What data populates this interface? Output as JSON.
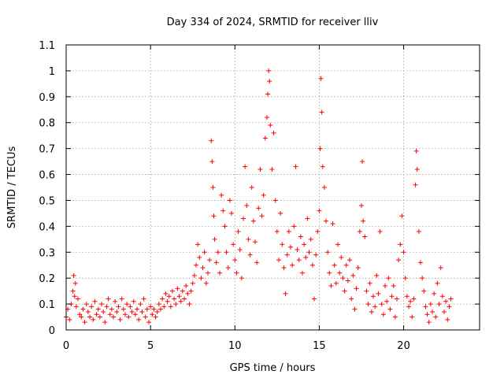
{
  "chart_data": {
    "type": "scatter",
    "title": "Day 334 of 2024, SRMTID for receiver lliv",
    "xlabel": "GPS time / hours",
    "ylabel": "SRMTID / TECUs",
    "xlim": [
      0,
      24.5
    ],
    "ylim": [
      0,
      1.1
    ],
    "xticks": [
      0,
      5,
      10,
      15,
      20
    ],
    "xtick_labels": [
      "0",
      "5",
      "10",
      "15",
      "20"
    ],
    "yticks": [
      0,
      0.1,
      0.2,
      0.3,
      0.4,
      0.5,
      0.6,
      0.7,
      0.8,
      0.9,
      1.0,
      1.1
    ],
    "ytick_labels": [
      "0",
      "0.1",
      "0.2",
      "0.3",
      "0.4",
      "0.5",
      "0.6",
      "0.7",
      "0.8",
      "0.9",
      "1",
      "1.1"
    ],
    "grid": true,
    "marker": "+",
    "series": [
      {
        "name": "SRMTID",
        "color": "#ff0000",
        "points": [
          [
            0.0,
            0.05
          ],
          [
            0.1,
            0.08
          ],
          [
            0.2,
            0.04
          ],
          [
            0.3,
            0.1
          ],
          [
            0.4,
            0.15
          ],
          [
            0.45,
            0.21
          ],
          [
            0.5,
            0.13
          ],
          [
            0.55,
            0.18
          ],
          [
            0.6,
            0.09
          ],
          [
            0.7,
            0.12
          ],
          [
            0.8,
            0.06
          ],
          [
            0.9,
            0.05
          ],
          [
            1.0,
            0.08
          ],
          [
            1.1,
            0.03
          ],
          [
            1.2,
            0.1
          ],
          [
            1.3,
            0.07
          ],
          [
            1.4,
            0.05
          ],
          [
            1.5,
            0.09
          ],
          [
            1.6,
            0.04
          ],
          [
            1.7,
            0.11
          ],
          [
            1.8,
            0.06
          ],
          [
            1.9,
            0.08
          ],
          [
            2.0,
            0.05
          ],
          [
            2.1,
            0.1
          ],
          [
            2.2,
            0.07
          ],
          [
            2.3,
            0.03
          ],
          [
            2.4,
            0.09
          ],
          [
            2.5,
            0.12
          ],
          [
            2.6,
            0.06
          ],
          [
            2.7,
            0.08
          ],
          [
            2.8,
            0.05
          ],
          [
            2.9,
            0.11
          ],
          [
            3.0,
            0.07
          ],
          [
            3.1,
            0.09
          ],
          [
            3.2,
            0.04
          ],
          [
            3.3,
            0.12
          ],
          [
            3.4,
            0.08
          ],
          [
            3.5,
            0.06
          ],
          [
            3.6,
            0.1
          ],
          [
            3.7,
            0.05
          ],
          [
            3.8,
            0.09
          ],
          [
            3.9,
            0.07
          ],
          [
            4.0,
            0.11
          ],
          [
            4.1,
            0.06
          ],
          [
            4.2,
            0.08
          ],
          [
            4.3,
            0.04
          ],
          [
            4.4,
            0.1
          ],
          [
            4.5,
            0.07
          ],
          [
            4.6,
            0.12
          ],
          [
            4.7,
            0.05
          ],
          [
            4.8,
            0.08
          ],
          [
            4.9,
            0.03
          ],
          [
            5.0,
            0.09
          ],
          [
            5.1,
            0.06
          ],
          [
            5.2,
            0.08
          ],
          [
            5.3,
            0.05
          ],
          [
            5.4,
            0.07
          ],
          [
            5.5,
            0.1
          ],
          [
            5.6,
            0.08
          ],
          [
            5.7,
            0.12
          ],
          [
            5.8,
            0.09
          ],
          [
            5.9,
            0.14
          ],
          [
            6.0,
            0.11
          ],
          [
            6.1,
            0.13
          ],
          [
            6.2,
            0.09
          ],
          [
            6.3,
            0.15
          ],
          [
            6.4,
            0.12
          ],
          [
            6.5,
            0.1
          ],
          [
            6.6,
            0.16
          ],
          [
            6.7,
            0.13
          ],
          [
            6.8,
            0.11
          ],
          [
            6.9,
            0.15
          ],
          [
            7.0,
            0.12
          ],
          [
            7.1,
            0.17
          ],
          [
            7.2,
            0.14
          ],
          [
            7.3,
            0.1
          ],
          [
            7.4,
            0.15
          ],
          [
            7.5,
            0.18
          ],
          [
            7.6,
            0.21
          ],
          [
            7.7,
            0.25
          ],
          [
            7.8,
            0.33
          ],
          [
            7.9,
            0.28
          ],
          [
            8.0,
            0.2
          ],
          [
            8.1,
            0.24
          ],
          [
            8.2,
            0.3
          ],
          [
            8.3,
            0.18
          ],
          [
            8.4,
            0.22
          ],
          [
            8.5,
            0.27
          ],
          [
            8.6,
            0.73
          ],
          [
            8.65,
            0.65
          ],
          [
            8.7,
            0.55
          ],
          [
            8.75,
            0.44
          ],
          [
            8.8,
            0.35
          ],
          [
            8.9,
            0.26
          ],
          [
            9.0,
            0.3
          ],
          [
            9.1,
            0.22
          ],
          [
            9.2,
            0.52
          ],
          [
            9.3,
            0.46
          ],
          [
            9.4,
            0.4
          ],
          [
            9.5,
            0.3
          ],
          [
            9.6,
            0.24
          ],
          [
            9.7,
            0.5
          ],
          [
            9.8,
            0.45
          ],
          [
            9.9,
            0.33
          ],
          [
            10.0,
            0.27
          ],
          [
            10.1,
            0.22
          ],
          [
            10.2,
            0.38
          ],
          [
            10.3,
            0.31
          ],
          [
            10.4,
            0.2
          ],
          [
            10.5,
            0.43
          ],
          [
            10.6,
            0.63
          ],
          [
            10.7,
            0.48
          ],
          [
            10.8,
            0.35
          ],
          [
            10.9,
            0.29
          ],
          [
            11.0,
            0.55
          ],
          [
            11.1,
            0.42
          ],
          [
            11.2,
            0.34
          ],
          [
            11.3,
            0.26
          ],
          [
            11.4,
            0.47
          ],
          [
            11.5,
            0.62
          ],
          [
            11.6,
            0.44
          ],
          [
            11.7,
            0.52
          ],
          [
            11.8,
            0.74
          ],
          [
            11.9,
            0.82
          ],
          [
            11.95,
            0.91
          ],
          [
            12.0,
            1.0
          ],
          [
            12.05,
            0.96
          ],
          [
            12.1,
            0.79
          ],
          [
            12.2,
            0.62
          ],
          [
            12.3,
            0.76
          ],
          [
            12.4,
            0.5
          ],
          [
            12.5,
            0.38
          ],
          [
            12.6,
            0.27
          ],
          [
            12.7,
            0.45
          ],
          [
            12.8,
            0.33
          ],
          [
            12.9,
            0.24
          ],
          [
            13.0,
            0.14
          ],
          [
            13.1,
            0.29
          ],
          [
            13.2,
            0.38
          ],
          [
            13.3,
            0.32
          ],
          [
            13.4,
            0.25
          ],
          [
            13.5,
            0.4
          ],
          [
            13.6,
            0.63
          ],
          [
            13.7,
            0.31
          ],
          [
            13.8,
            0.27
          ],
          [
            13.9,
            0.36
          ],
          [
            14.0,
            0.22
          ],
          [
            14.1,
            0.33
          ],
          [
            14.2,
            0.28
          ],
          [
            14.3,
            0.43
          ],
          [
            14.4,
            0.3
          ],
          [
            14.5,
            0.35
          ],
          [
            14.6,
            0.25
          ],
          [
            14.7,
            0.12
          ],
          [
            14.8,
            0.29
          ],
          [
            14.9,
            0.38
          ],
          [
            15.0,
            0.46
          ],
          [
            15.05,
            0.7
          ],
          [
            15.1,
            0.97
          ],
          [
            15.15,
            0.84
          ],
          [
            15.2,
            0.63
          ],
          [
            15.3,
            0.55
          ],
          [
            15.4,
            0.42
          ],
          [
            15.5,
            0.3
          ],
          [
            15.6,
            0.22
          ],
          [
            15.7,
            0.17
          ],
          [
            15.8,
            0.41
          ],
          [
            15.9,
            0.25
          ],
          [
            16.0,
            0.18
          ],
          [
            16.1,
            0.33
          ],
          [
            16.2,
            0.22
          ],
          [
            16.3,
            0.28
          ],
          [
            16.4,
            0.2
          ],
          [
            16.5,
            0.15
          ],
          [
            16.6,
            0.25
          ],
          [
            16.7,
            0.19
          ],
          [
            16.8,
            0.27
          ],
          [
            16.9,
            0.12
          ],
          [
            17.0,
            0.21
          ],
          [
            17.1,
            0.08
          ],
          [
            17.2,
            0.16
          ],
          [
            17.3,
            0.24
          ],
          [
            17.4,
            0.38
          ],
          [
            17.5,
            0.48
          ],
          [
            17.55,
            0.65
          ],
          [
            17.6,
            0.42
          ],
          [
            17.7,
            0.36
          ],
          [
            17.8,
            0.15
          ],
          [
            17.9,
            0.1
          ],
          [
            18.0,
            0.18
          ],
          [
            18.1,
            0.07
          ],
          [
            18.2,
            0.13
          ],
          [
            18.3,
            0.09
          ],
          [
            18.4,
            0.21
          ],
          [
            18.5,
            0.14
          ],
          [
            18.6,
            0.38
          ],
          [
            18.7,
            0.1
          ],
          [
            18.8,
            0.06
          ],
          [
            18.9,
            0.17
          ],
          [
            19.0,
            0.11
          ],
          [
            19.1,
            0.2
          ],
          [
            19.2,
            0.08
          ],
          [
            19.3,
            0.13
          ],
          [
            19.4,
            0.17
          ],
          [
            19.5,
            0.05
          ],
          [
            19.6,
            0.12
          ],
          [
            19.7,
            0.27
          ],
          [
            19.8,
            0.33
          ],
          [
            19.9,
            0.44
          ],
          [
            20.0,
            0.3
          ],
          [
            20.1,
            0.2
          ],
          [
            20.2,
            0.13
          ],
          [
            20.3,
            0.09
          ],
          [
            20.4,
            0.11
          ],
          [
            20.5,
            0.05
          ],
          [
            20.6,
            0.12
          ],
          [
            20.7,
            0.56
          ],
          [
            20.75,
            0.69
          ],
          [
            20.8,
            0.62
          ],
          [
            20.9,
            0.38
          ],
          [
            21.0,
            0.26
          ],
          [
            21.1,
            0.2
          ],
          [
            21.2,
            0.15
          ],
          [
            21.3,
            0.09
          ],
          [
            21.4,
            0.06
          ],
          [
            21.5,
            0.03
          ],
          [
            21.6,
            0.1
          ],
          [
            21.7,
            0.07
          ],
          [
            21.8,
            0.14
          ],
          [
            21.9,
            0.05
          ],
          [
            22.0,
            0.18
          ],
          [
            22.1,
            0.1
          ],
          [
            22.2,
            0.24
          ],
          [
            22.3,
            0.13
          ],
          [
            22.4,
            0.07
          ],
          [
            22.5,
            0.11
          ],
          [
            22.6,
            0.04
          ],
          [
            22.7,
            0.09
          ],
          [
            22.8,
            0.12
          ]
        ]
      }
    ]
  }
}
